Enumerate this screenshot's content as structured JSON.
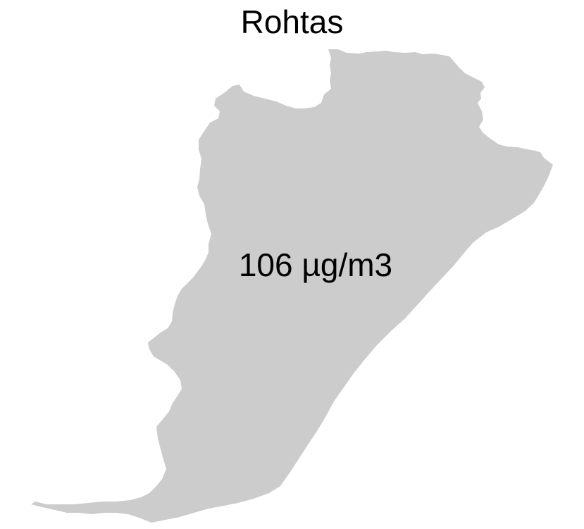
{
  "map": {
    "title": "Rohtas",
    "region_value_label": "106 µg/m3",
    "region_fill": "#cccccc",
    "background": "#ffffff",
    "text_color": "#000000"
  }
}
